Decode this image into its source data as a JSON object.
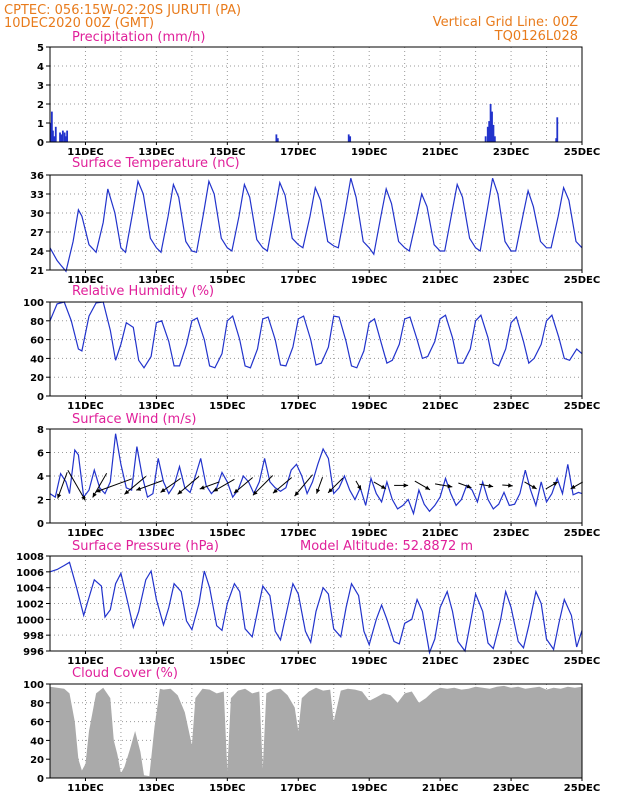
{
  "header": {
    "line1_left": "CPTEC:   056:15W-02:20S   JURUTI (PA)",
    "line2_left": "10DEC2020 00Z (GMT)",
    "line1_right": "Vertical Grid Line: 00Z",
    "line2_right": "TQ0126L028",
    "color": "#e87b1c"
  },
  "x_ticks": [
    "11DEC",
    "13DEC",
    "15DEC",
    "17DEC",
    "19DEC",
    "21DEC",
    "23DEC",
    "25DEC"
  ],
  "title_color": "#e0209a",
  "line_color": "#2233cc",
  "cloud_color": "#aaaaaa",
  "chart_data": [
    {
      "id": "precip",
      "type": "bar",
      "title": "Precipitation (mm/h)",
      "ylim": [
        0,
        5
      ],
      "yticks": [
        0,
        1,
        2,
        3,
        4,
        5
      ],
      "grid": true,
      "x": [
        0.02,
        0.05,
        0.08,
        0.12,
        0.16,
        0.28,
        0.31,
        0.36,
        0.41,
        0.44,
        0.48,
        6.38,
        6.42,
        8.42,
        8.46,
        12.28,
        12.34,
        12.38,
        12.42,
        12.46,
        12.5,
        12.54,
        14.27,
        14.3
      ],
      "values": [
        1.0,
        1.6,
        0.6,
        0.3,
        0.8,
        0.5,
        0.4,
        0.6,
        0.5,
        0.3,
        0.6,
        0.4,
        0.2,
        0.4,
        0.3,
        0.3,
        0.8,
        1.1,
        2.0,
        1.6,
        0.9,
        0.3,
        0.2,
        1.3
      ]
    },
    {
      "id": "temp",
      "type": "line",
      "title": "Surface Temperature (nC)",
      "ylim": [
        21,
        36
      ],
      "yticks": [
        21,
        24,
        27,
        30,
        33,
        36
      ],
      "grid": true,
      "x": [
        0,
        0.2,
        0.3,
        0.45,
        0.65,
        0.8,
        0.9,
        1.1,
        1.3,
        1.5,
        1.63,
        1.83,
        2.0,
        2.13,
        2.33,
        2.48,
        2.63,
        2.83,
        3.0,
        3.13,
        3.33,
        3.48,
        3.63,
        3.83,
        4.0,
        4.13,
        4.33,
        4.48,
        4.63,
        4.83,
        5.0,
        5.13,
        5.33,
        5.48,
        5.63,
        5.83,
        6.0,
        6.13,
        6.33,
        6.48,
        6.63,
        6.83,
        7.0,
        7.13,
        7.33,
        7.48,
        7.63,
        7.83,
        8.0,
        8.13,
        8.33,
        8.48,
        8.63,
        8.83,
        9.0,
        9.13,
        9.33,
        9.48,
        9.63,
        9.83,
        10.0,
        10.13,
        10.33,
        10.48,
        10.63,
        10.83,
        11.0,
        11.13,
        11.33,
        11.48,
        11.63,
        11.83,
        12.0,
        12.13,
        12.33,
        12.48,
        12.63,
        12.83,
        13.0,
        13.13,
        13.33,
        13.48,
        13.63,
        13.83,
        14.0,
        14.13,
        14.33,
        14.48,
        14.63,
        14.83,
        15.0
      ],
      "values": [
        24.5,
        22.5,
        21.8,
        20.8,
        25.5,
        30.5,
        29.5,
        25,
        23.8,
        28.5,
        33.8,
        30,
        24.5,
        23.8,
        30,
        35,
        33,
        26,
        24.5,
        23.8,
        29.5,
        34.5,
        32.5,
        25.5,
        24,
        23.8,
        30,
        35,
        33,
        26,
        24.5,
        24,
        29.5,
        34.5,
        32.5,
        25.8,
        24.5,
        24,
        30,
        34.8,
        32.8,
        26,
        25,
        24.5,
        29.5,
        34,
        32,
        25.5,
        24.8,
        24.5,
        30.5,
        35.5,
        32.5,
        25.5,
        24.5,
        23.5,
        29.5,
        33.8,
        31.5,
        25.5,
        24.5,
        24,
        29,
        33,
        31,
        25,
        24,
        24,
        30,
        34.5,
        32.5,
        26,
        24.5,
        24,
        30.5,
        35.5,
        33,
        25.5,
        24,
        24,
        29.5,
        33.5,
        31,
        25.5,
        24.5,
        24.5,
        29.5,
        34,
        32,
        25.5,
        24.5
      ]
    },
    {
      "id": "rh",
      "type": "line",
      "title": "Relative Humidity (%)",
      "ylim": [
        0,
        100
      ],
      "yticks": [
        0,
        20,
        40,
        60,
        80,
        100
      ],
      "grid": true,
      "x": [
        0,
        0.2,
        0.4,
        0.6,
        0.8,
        0.9,
        1.1,
        1.3,
        1.5,
        1.7,
        1.85,
        2.0,
        2.15,
        2.35,
        2.5,
        2.65,
        2.85,
        3.0,
        3.15,
        3.35,
        3.5,
        3.65,
        3.85,
        4.0,
        4.15,
        4.35,
        4.5,
        4.65,
        4.85,
        5.0,
        5.15,
        5.35,
        5.5,
        5.65,
        5.85,
        6.0,
        6.15,
        6.35,
        6.5,
        6.65,
        6.85,
        7.0,
        7.15,
        7.35,
        7.5,
        7.65,
        7.85,
        8.0,
        8.15,
        8.35,
        8.5,
        8.65,
        8.85,
        9.0,
        9.15,
        9.35,
        9.5,
        9.65,
        9.85,
        10.0,
        10.15,
        10.35,
        10.5,
        10.65,
        10.85,
        11.0,
        11.15,
        11.35,
        11.5,
        11.65,
        11.85,
        12.0,
        12.15,
        12.35,
        12.5,
        12.65,
        12.85,
        13.0,
        13.15,
        13.35,
        13.5,
        13.65,
        13.85,
        14.0,
        14.15,
        14.35,
        14.5,
        14.65,
        14.85,
        15.0
      ],
      "values": [
        80,
        98,
        100,
        80,
        50,
        48,
        85,
        99,
        100,
        70,
        38,
        55,
        78,
        73,
        38,
        30,
        42,
        78,
        80,
        58,
        32,
        32,
        55,
        80,
        83,
        60,
        32,
        30,
        45,
        80,
        85,
        60,
        32,
        30,
        50,
        82,
        84,
        60,
        33,
        32,
        52,
        82,
        85,
        60,
        33,
        35,
        52,
        85,
        84,
        58,
        32,
        30,
        48,
        78,
        82,
        55,
        35,
        38,
        55,
        82,
        84,
        60,
        40,
        42,
        58,
        82,
        86,
        62,
        35,
        35,
        50,
        80,
        86,
        62,
        35,
        32,
        50,
        78,
        84,
        58,
        35,
        40,
        55,
        80,
        86,
        62,
        40,
        38,
        50,
        45
      ]
    },
    {
      "id": "wind",
      "type": "line",
      "title": "Surface Wind (m/s)",
      "ylim": [
        0,
        8
      ],
      "yticks": [
        0,
        2,
        4,
        6,
        8
      ],
      "grid": true,
      "x": [
        0,
        0.15,
        0.3,
        0.45,
        0.55,
        0.7,
        0.8,
        0.95,
        1.1,
        1.25,
        1.4,
        1.55,
        1.7,
        1.85,
        2.0,
        2.15,
        2.3,
        2.45,
        2.6,
        2.75,
        2.9,
        3.05,
        3.2,
        3.35,
        3.5,
        3.65,
        3.8,
        3.95,
        4.1,
        4.25,
        4.4,
        4.55,
        4.7,
        4.85,
        5.0,
        5.15,
        5.3,
        5.45,
        5.6,
        5.75,
        5.9,
        6.05,
        6.2,
        6.35,
        6.5,
        6.65,
        6.8,
        6.95,
        7.1,
        7.25,
        7.4,
        7.55,
        7.7,
        7.85,
        8.0,
        8.15,
        8.3,
        8.45,
        8.6,
        8.75,
        8.9,
        9.05,
        9.2,
        9.35,
        9.5,
        9.65,
        9.8,
        9.95,
        10.1,
        10.25,
        10.4,
        10.55,
        10.7,
        10.85,
        11.0,
        11.15,
        11.3,
        11.45,
        11.6,
        11.75,
        11.9,
        12.05,
        12.2,
        12.35,
        12.5,
        12.65,
        12.8,
        12.95,
        13.1,
        13.25,
        13.4,
        13.55,
        13.7,
        13.85,
        14.0,
        14.15,
        14.3,
        14.45,
        14.6,
        14.75,
        14.9,
        15.0
      ],
      "values": [
        2.5,
        2.2,
        4.2,
        3.5,
        2.5,
        6.2,
        5.8,
        2.2,
        2.8,
        4.5,
        3.0,
        2.5,
        3.5,
        7.6,
        5.0,
        3.0,
        2.8,
        6.5,
        4.0,
        2.2,
        2.5,
        5.5,
        3.5,
        2.5,
        3.2,
        4.8,
        3.0,
        2.6,
        4.0,
        5.5,
        3.2,
        2.5,
        3.0,
        4.3,
        3.5,
        2.2,
        2.8,
        4.0,
        3.5,
        2.5,
        3.5,
        5.5,
        3.5,
        3.0,
        2.7,
        3.0,
        4.5,
        5.0,
        4.0,
        2.5,
        3.5,
        5.0,
        6.3,
        5.5,
        2.5,
        3.0,
        4.0,
        2.8,
        2.0,
        3.0,
        1.5,
        3.8,
        2.5,
        1.8,
        3.5,
        2.0,
        1.2,
        1.5,
        2.0,
        0.8,
        2.8,
        1.6,
        1.0,
        1.5,
        2.2,
        3.8,
        2.5,
        1.5,
        2.0,
        3.2,
        2.8,
        1.8,
        3.5,
        2.0,
        1.2,
        1.6,
        2.6,
        1.5,
        1.6,
        2.5,
        4.5,
        2.8,
        1.5,
        3.5,
        1.8,
        2.5,
        3.8,
        2.5,
        5.0,
        2.4,
        2.6,
        2.5
      ]
    },
    {
      "id": "pressure",
      "type": "line",
      "title": "Surface Pressure (hPa)",
      "annotation": "Model Altitude: 52.8872 m",
      "ylim": [
        996,
        1008
      ],
      "yticks": [
        996,
        998,
        1000,
        1002,
        1004,
        1006,
        1008
      ],
      "grid": true,
      "x": [
        0,
        0.2,
        0.4,
        0.55,
        0.75,
        0.95,
        1.05,
        1.25,
        1.45,
        1.55,
        1.7,
        1.85,
        2.0,
        2.2,
        2.35,
        2.5,
        2.7,
        2.85,
        3.0,
        3.2,
        3.35,
        3.5,
        3.7,
        3.85,
        4.0,
        4.2,
        4.35,
        4.5,
        4.7,
        4.85,
        5.0,
        5.2,
        5.35,
        5.5,
        5.7,
        5.85,
        6.0,
        6.2,
        6.35,
        6.5,
        6.7,
        6.85,
        7.0,
        7.2,
        7.35,
        7.5,
        7.7,
        7.85,
        8.0,
        8.2,
        8.35,
        8.5,
        8.7,
        8.85,
        9.0,
        9.2,
        9.35,
        9.5,
        9.7,
        9.85,
        10.0,
        10.2,
        10.35,
        10.5,
        10.7,
        10.85,
        11.0,
        11.2,
        11.35,
        11.5,
        11.7,
        11.85,
        12.0,
        12.2,
        12.35,
        12.5,
        12.7,
        12.85,
        13.0,
        13.2,
        13.35,
        13.5,
        13.7,
        13.85,
        14.0,
        14.2,
        14.35,
        14.5,
        14.7,
        14.85,
        15.0
      ],
      "values": [
        1006,
        1006.3,
        1006.8,
        1007.2,
        1004,
        1000.5,
        1002,
        1005,
        1004.2,
        1000.3,
        1001.2,
        1004.5,
        1005.8,
        1002,
        999,
        1001,
        1005,
        1006.1,
        1002.5,
        999.3,
        1001.5,
        1004.5,
        1003.5,
        999.8,
        998.7,
        1002,
        1006.1,
        1004,
        999.2,
        998.6,
        1002,
        1004.5,
        1003.5,
        998.8,
        997.8,
        1001,
        1004.2,
        1003,
        998.5,
        997.4,
        1001.5,
        1004.5,
        1003.2,
        998.5,
        997.1,
        1001,
        1004,
        1003.2,
        998.8,
        997.8,
        1001.5,
        1004.5,
        1003,
        998.5,
        996.8,
        1000,
        1001.8,
        1000,
        997.2,
        996.9,
        999.5,
        1000,
        1002.5,
        1001,
        995.8,
        997.5,
        1001.5,
        1003.5,
        1001,
        997.2,
        996,
        999.5,
        1003.2,
        1001,
        997,
        996.3,
        999.8,
        1003.5,
        1001.5,
        997.2,
        996.4,
        999.2,
        1003.5,
        1002,
        997.5,
        996.2,
        999.5,
        1002.5,
        1000.5,
        996.5,
        998.6
      ]
    },
    {
      "id": "cloud",
      "type": "area",
      "title": "Cloud Cover (%)",
      "ylim": [
        0,
        100
      ],
      "yticks": [
        0,
        20,
        40,
        60,
        80,
        100
      ],
      "grid": true,
      "x": [
        0,
        0.2,
        0.4,
        0.55,
        0.7,
        0.8,
        0.9,
        1.0,
        1.1,
        1.3,
        1.5,
        1.7,
        1.8,
        1.9,
        2.0,
        2.1,
        2.25,
        2.4,
        2.55,
        2.65,
        2.8,
        2.95,
        3.1,
        3.2,
        3.4,
        3.6,
        3.8,
        4.0,
        4.1,
        4.3,
        4.5,
        4.7,
        4.9,
        5.0,
        5.1,
        5.3,
        5.5,
        5.7,
        5.9,
        6.0,
        6.1,
        6.3,
        6.5,
        6.7,
        6.9,
        7.0,
        7.1,
        7.3,
        7.5,
        7.7,
        7.9,
        8.0,
        8.2,
        8.4,
        8.6,
        8.8,
        9.0,
        9.2,
        9.4,
        9.6,
        9.8,
        10.0,
        10.2,
        10.4,
        10.6,
        10.8,
        11.0,
        11.2,
        11.4,
        11.6,
        11.8,
        12.0,
        12.2,
        12.4,
        12.6,
        12.8,
        13.0,
        13.2,
        13.4,
        13.6,
        13.8,
        14.0,
        14.2,
        14.4,
        14.6,
        14.8,
        15.0
      ],
      "values": [
        97,
        96,
        95,
        90,
        60,
        20,
        8,
        15,
        50,
        90,
        96,
        85,
        40,
        25,
        5,
        12,
        30,
        50,
        28,
        3,
        2,
        55,
        95,
        94,
        95,
        88,
        70,
        35,
        85,
        95,
        94,
        90,
        92,
        8,
        85,
        93,
        95,
        90,
        92,
        10,
        90,
        94,
        95,
        88,
        75,
        50,
        85,
        92,
        96,
        93,
        94,
        60,
        93,
        95,
        94,
        92,
        82,
        86,
        90,
        88,
        80,
        90,
        92,
        80,
        85,
        92,
        96,
        95,
        96,
        94,
        95,
        97,
        96,
        95,
        97,
        98,
        96,
        97,
        95,
        96,
        97,
        94,
        96,
        95,
        97,
        96,
        97
      ]
    }
  ],
  "wind_barbs": [
    {
      "x": 0.35,
      "speed": 4.0,
      "dir_deg": 200
    },
    {
      "x": 0.75,
      "speed": 5.0,
      "dir_deg": 150
    },
    {
      "x": 1.4,
      "speed": 4.0,
      "dir_deg": 210
    },
    {
      "x": 1.8,
      "speed": 5.5,
      "dir_deg": 250
    },
    {
      "x": 2.4,
      "speed": 4.0,
      "dir_deg": 230
    },
    {
      "x": 2.8,
      "speed": 4.0,
      "dir_deg": 250
    },
    {
      "x": 3.4,
      "speed": 3.5,
      "dir_deg": 235
    },
    {
      "x": 3.9,
      "speed": 4.0,
      "dir_deg": 230
    },
    {
      "x": 4.5,
      "speed": 3.0,
      "dir_deg": 250
    },
    {
      "x": 4.9,
      "speed": 3.5,
      "dir_deg": 240
    },
    {
      "x": 5.45,
      "speed": 3.5,
      "dir_deg": 230
    },
    {
      "x": 6.0,
      "speed": 4.0,
      "dir_deg": 225
    },
    {
      "x": 6.55,
      "speed": 3.5,
      "dir_deg": 230
    },
    {
      "x": 7.15,
      "speed": 4.0,
      "dir_deg": 220
    },
    {
      "x": 7.6,
      "speed": 2.5,
      "dir_deg": 200
    },
    {
      "x": 8.05,
      "speed": 3.0,
      "dir_deg": 225
    },
    {
      "x": 8.7,
      "speed": 1.5,
      "dir_deg": 150
    },
    {
      "x": 9.3,
      "speed": 2.0,
      "dir_deg": 120
    },
    {
      "x": 9.9,
      "speed": 2.0,
      "dir_deg": 90
    },
    {
      "x": 10.5,
      "speed": 2.5,
      "dir_deg": 120
    },
    {
      "x": 11.1,
      "speed": 2.5,
      "dir_deg": 100
    },
    {
      "x": 11.7,
      "speed": 2.0,
      "dir_deg": 110
    },
    {
      "x": 12.3,
      "speed": 2.0,
      "dir_deg": 100
    },
    {
      "x": 12.9,
      "speed": 1.5,
      "dir_deg": 95
    },
    {
      "x": 13.55,
      "speed": 2.0,
      "dir_deg": 120
    },
    {
      "x": 14.15,
      "speed": 2.0,
      "dir_deg": 60
    },
    {
      "x": 14.85,
      "speed": 2.0,
      "dir_deg": 240
    }
  ]
}
